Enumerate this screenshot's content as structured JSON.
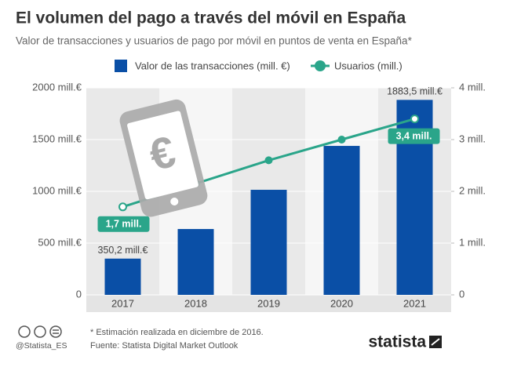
{
  "title": "El volumen del pago a través del móvil en España",
  "subtitle": "Valor de transacciones y usuarios de pago por móvil en puntos de venta en España*",
  "chart_data": {
    "type": "bar_line",
    "categories": [
      "2017",
      "2018",
      "2019",
      "2020",
      "2021"
    ],
    "series": [
      {
        "name": "Valor de las transacciones (mill. €)",
        "color": "#0a4fa6",
        "type": "bar",
        "values": [
          350.2,
          636,
          1015,
          1439,
          1883.5
        ],
        "value_labels": [
          "350,2 mill.€",
          null,
          null,
          null,
          "1883,5 mill.€"
        ]
      },
      {
        "name": "Usuarios (mill.)",
        "color": "#2aa58a",
        "type": "line",
        "axis": "y2",
        "values": [
          1.7,
          2.15,
          2.6,
          3.0,
          3.4
        ],
        "value_labels": [
          "1,7 mill.",
          null,
          null,
          null,
          "3,4 mill."
        ]
      }
    ],
    "ylim": [
      0,
      2000
    ],
    "yticks": [
      0,
      {
        "value": 500,
        "label": "500 mill.€"
      },
      {
        "value": 1000,
        "label": "1000 mill.€"
      },
      {
        "value": 1500,
        "label": "1500 mill.€"
      },
      {
        "value": 2000,
        "label": "2000 mill.€"
      }
    ],
    "y2lim": [
      0,
      4
    ],
    "y2ticks": [
      0,
      {
        "value": 1,
        "label": "1 mill."
      },
      {
        "value": 2,
        "label": "2 mill."
      },
      {
        "value": 3,
        "label": "3 mill."
      },
      {
        "value": 4,
        "label": "4 mill."
      }
    ]
  },
  "icon_symbol": "€",
  "footer": {
    "handle": "@Statista_ES",
    "note": "* Estimación realizada en diciembre de 2016.",
    "source": "Fuente: Statista Digital Market Outlook",
    "brand": "statista"
  }
}
